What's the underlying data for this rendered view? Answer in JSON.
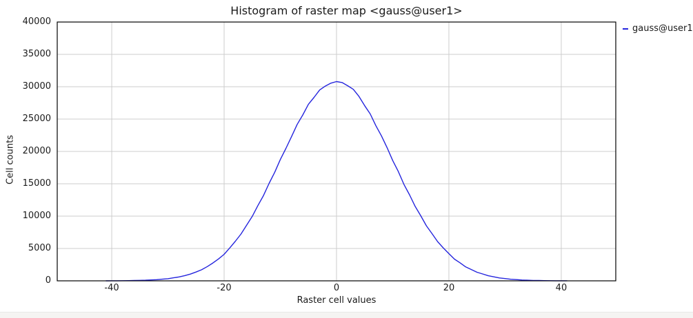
{
  "window": {
    "title": "Histogram of raster map <gauss@user1>"
  },
  "colors": {
    "line": "#2424dd",
    "grid": "#cdcdcd",
    "frame": "#000000",
    "background": "#ffffff",
    "bottom_bar": "#f5f4f2"
  },
  "legend": {
    "label": "gauss@user1"
  },
  "chart_data": {
    "type": "line",
    "title": "Histogram of raster map <gauss@user1>",
    "xlabel": "Raster cell values",
    "ylabel": "Cell counts",
    "xlim": [
      -49.7,
      49.7
    ],
    "ylim": [
      0,
      40000
    ],
    "x_ticks": [
      -40,
      -20,
      0,
      20,
      40
    ],
    "y_ticks": [
      0,
      5000,
      10000,
      15000,
      20000,
      25000,
      30000,
      35000,
      40000
    ],
    "grid": true,
    "legend_position": "top-right",
    "series": [
      {
        "name": "gauss@user1",
        "color": "#2424dd",
        "x": [
          -41,
          -40,
          -39,
          -38,
          -37,
          -36,
          -35,
          -34,
          -33,
          -32,
          -31,
          -30,
          -29,
          -28,
          -27,
          -26,
          -25,
          -24,
          -23,
          -22,
          -21,
          -20,
          -19,
          -18,
          -17,
          -16,
          -15,
          -14,
          -13,
          -12,
          -11,
          -10,
          -9,
          -8,
          -7,
          -6,
          -5,
          -4,
          -3,
          -2,
          -1,
          0,
          1,
          2,
          3,
          4,
          5,
          6,
          7,
          8,
          9,
          10,
          11,
          12,
          13,
          14,
          15,
          16,
          17,
          18,
          19,
          20,
          21,
          22,
          23,
          24,
          25,
          26,
          27,
          28,
          29,
          30,
          31,
          32,
          33,
          34,
          35,
          36,
          37,
          38,
          39,
          40,
          41
        ],
        "y": [
          5,
          12,
          13,
          25,
          30,
          49,
          70,
          91,
          138,
          180,
          258,
          335,
          468,
          603,
          812,
          1040,
          1365,
          1710,
          2200,
          2750,
          3380,
          4100,
          5090,
          6120,
          7230,
          8590,
          9960,
          11620,
          13180,
          15050,
          16780,
          18740,
          20480,
          22300,
          24180,
          25640,
          27300,
          28350,
          29500,
          30100,
          30550,
          30800,
          30650,
          30150,
          29600,
          28500,
          27100,
          25800,
          24000,
          22400,
          20600,
          18600,
          16900,
          14900,
          13300,
          11500,
          10050,
          8500,
          7300,
          6050,
          5100,
          4200,
          3350,
          2780,
          2150,
          1750,
          1330,
          1060,
          790,
          620,
          450,
          350,
          245,
          190,
          128,
          98,
          64,
          50,
          30,
          24,
          13,
          11,
          6
        ]
      }
    ]
  }
}
